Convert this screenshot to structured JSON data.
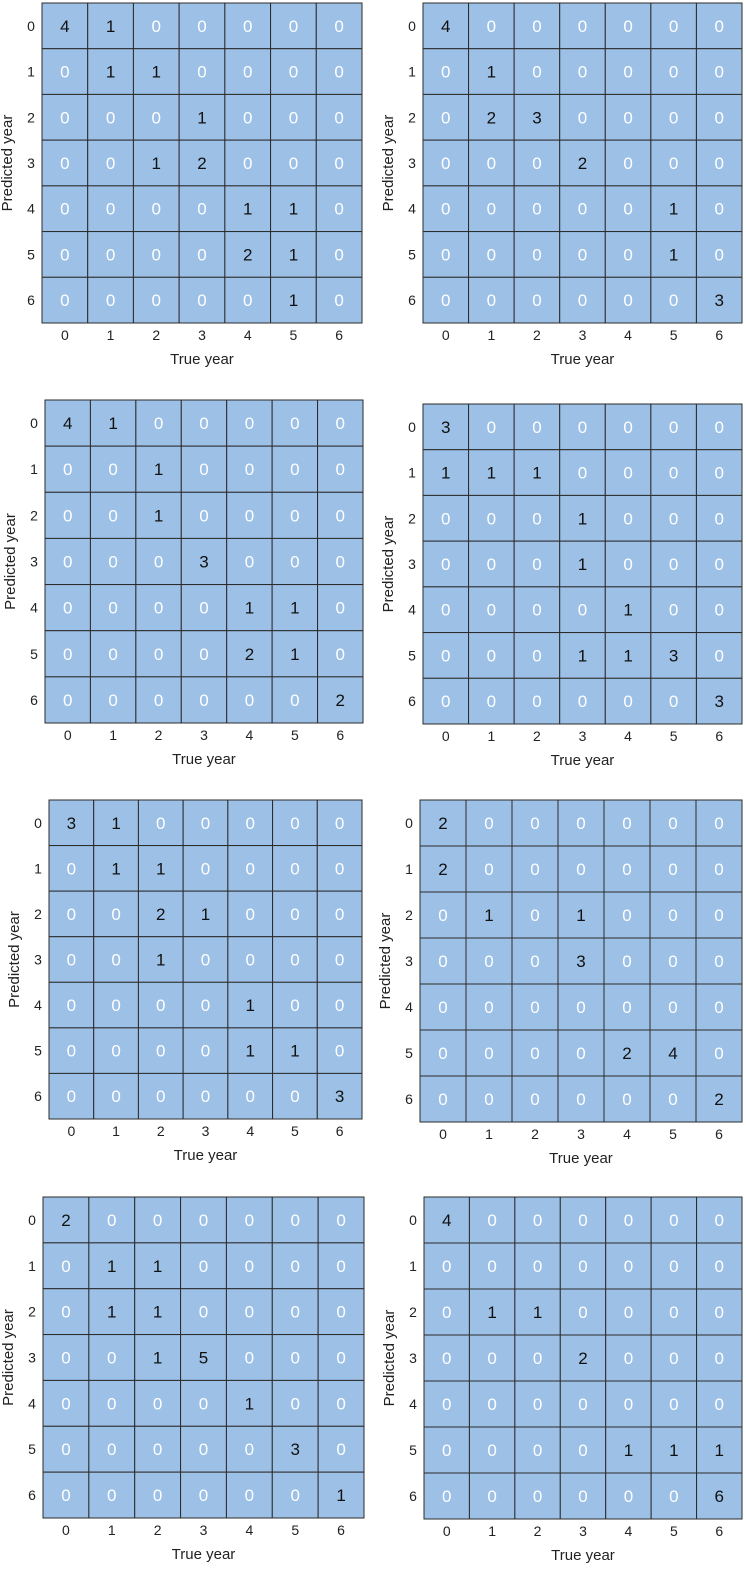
{
  "colors": {
    "cell_fill": "#9dc0e6",
    "grid_line": "#2b2b2b",
    "zero_text": "#ffffff",
    "nonzero_text": "#111111"
  },
  "chart_data": [
    {
      "type": "heatmap",
      "xlabel": "True year",
      "ylabel": "Predicted year",
      "x_categories": [
        "0",
        "1",
        "2",
        "3",
        "4",
        "5",
        "6"
      ],
      "y_categories": [
        "0",
        "1",
        "2",
        "3",
        "4",
        "5",
        "6"
      ],
      "values": [
        [
          4,
          1,
          0,
          0,
          0,
          0,
          0
        ],
        [
          0,
          1,
          1,
          0,
          0,
          0,
          0
        ],
        [
          0,
          0,
          0,
          1,
          0,
          0,
          0
        ],
        [
          0,
          0,
          1,
          2,
          0,
          0,
          0
        ],
        [
          0,
          0,
          0,
          0,
          1,
          1,
          0
        ],
        [
          0,
          0,
          0,
          0,
          2,
          1,
          0
        ],
        [
          0,
          0,
          0,
          0,
          0,
          1,
          0
        ]
      ]
    },
    {
      "type": "heatmap",
      "xlabel": "True year",
      "ylabel": "Predicted year",
      "x_categories": [
        "0",
        "1",
        "2",
        "3",
        "4",
        "5",
        "6"
      ],
      "y_categories": [
        "0",
        "1",
        "2",
        "3",
        "4",
        "5",
        "6"
      ],
      "values": [
        [
          4,
          0,
          0,
          0,
          0,
          0,
          0
        ],
        [
          0,
          1,
          0,
          0,
          0,
          0,
          0
        ],
        [
          0,
          2,
          3,
          0,
          0,
          0,
          0
        ],
        [
          0,
          0,
          0,
          2,
          0,
          0,
          0
        ],
        [
          0,
          0,
          0,
          0,
          0,
          1,
          0
        ],
        [
          0,
          0,
          0,
          0,
          0,
          1,
          0
        ],
        [
          0,
          0,
          0,
          0,
          0,
          0,
          3
        ]
      ]
    },
    {
      "type": "heatmap",
      "xlabel": "True year",
      "ylabel": "Predicted year",
      "x_categories": [
        "0",
        "1",
        "2",
        "3",
        "4",
        "5",
        "6"
      ],
      "y_categories": [
        "0",
        "1",
        "2",
        "3",
        "4",
        "5",
        "6"
      ],
      "values": [
        [
          4,
          1,
          0,
          0,
          0,
          0,
          0
        ],
        [
          0,
          0,
          1,
          0,
          0,
          0,
          0
        ],
        [
          0,
          0,
          1,
          0,
          0,
          0,
          0
        ],
        [
          0,
          0,
          0,
          3,
          0,
          0,
          0
        ],
        [
          0,
          0,
          0,
          0,
          1,
          1,
          0
        ],
        [
          0,
          0,
          0,
          0,
          2,
          1,
          0
        ],
        [
          0,
          0,
          0,
          0,
          0,
          0,
          2
        ]
      ]
    },
    {
      "type": "heatmap",
      "xlabel": "True year",
      "ylabel": "Predicted year",
      "x_categories": [
        "0",
        "1",
        "2",
        "3",
        "4",
        "5",
        "6"
      ],
      "y_categories": [
        "0",
        "1",
        "2",
        "3",
        "4",
        "5",
        "6"
      ],
      "values": [
        [
          3,
          0,
          0,
          0,
          0,
          0,
          0
        ],
        [
          1,
          1,
          1,
          0,
          0,
          0,
          0
        ],
        [
          0,
          0,
          0,
          1,
          0,
          0,
          0
        ],
        [
          0,
          0,
          0,
          1,
          0,
          0,
          0
        ],
        [
          0,
          0,
          0,
          0,
          1,
          0,
          0
        ],
        [
          0,
          0,
          0,
          1,
          1,
          3,
          0
        ],
        [
          0,
          0,
          0,
          0,
          0,
          0,
          3
        ]
      ]
    },
    {
      "type": "heatmap",
      "xlabel": "True year",
      "ylabel": "Predicted year",
      "x_categories": [
        "0",
        "1",
        "2",
        "3",
        "4",
        "5",
        "6"
      ],
      "y_categories": [
        "0",
        "1",
        "2",
        "3",
        "4",
        "5",
        "6"
      ],
      "values": [
        [
          3,
          1,
          0,
          0,
          0,
          0,
          0
        ],
        [
          0,
          1,
          1,
          0,
          0,
          0,
          0
        ],
        [
          0,
          0,
          2,
          1,
          0,
          0,
          0
        ],
        [
          0,
          0,
          1,
          0,
          0,
          0,
          0
        ],
        [
          0,
          0,
          0,
          0,
          1,
          0,
          0
        ],
        [
          0,
          0,
          0,
          0,
          1,
          1,
          0
        ],
        [
          0,
          0,
          0,
          0,
          0,
          0,
          3
        ]
      ]
    },
    {
      "type": "heatmap",
      "xlabel": "True year",
      "ylabel": "Predicted year",
      "x_categories": [
        "0",
        "1",
        "2",
        "3",
        "4",
        "5",
        "6"
      ],
      "y_categories": [
        "0",
        "1",
        "2",
        "3",
        "4",
        "5",
        "6"
      ],
      "values": [
        [
          2,
          0,
          0,
          0,
          0,
          0,
          0
        ],
        [
          2,
          0,
          0,
          0,
          0,
          0,
          0
        ],
        [
          0,
          1,
          0,
          1,
          0,
          0,
          0
        ],
        [
          0,
          0,
          0,
          3,
          0,
          0,
          0
        ],
        [
          0,
          0,
          0,
          0,
          0,
          0,
          0
        ],
        [
          0,
          0,
          0,
          0,
          2,
          4,
          0
        ],
        [
          0,
          0,
          0,
          0,
          0,
          0,
          2
        ]
      ]
    },
    {
      "type": "heatmap",
      "xlabel": "True year",
      "ylabel": "Predicted year",
      "x_categories": [
        "0",
        "1",
        "2",
        "3",
        "4",
        "5",
        "6"
      ],
      "y_categories": [
        "0",
        "1",
        "2",
        "3",
        "4",
        "5",
        "6"
      ],
      "values": [
        [
          2,
          0,
          0,
          0,
          0,
          0,
          0
        ],
        [
          0,
          1,
          1,
          0,
          0,
          0,
          0
        ],
        [
          0,
          1,
          1,
          0,
          0,
          0,
          0
        ],
        [
          0,
          0,
          1,
          5,
          0,
          0,
          0
        ],
        [
          0,
          0,
          0,
          0,
          1,
          0,
          0
        ],
        [
          0,
          0,
          0,
          0,
          0,
          3,
          0
        ],
        [
          0,
          0,
          0,
          0,
          0,
          0,
          1
        ]
      ]
    },
    {
      "type": "heatmap",
      "xlabel": "True year",
      "ylabel": "Predicted year",
      "x_categories": [
        "0",
        "1",
        "2",
        "3",
        "4",
        "5",
        "6"
      ],
      "y_categories": [
        "0",
        "1",
        "2",
        "3",
        "4",
        "5",
        "6"
      ],
      "values": [
        [
          4,
          0,
          0,
          0,
          0,
          0,
          0
        ],
        [
          0,
          0,
          0,
          0,
          0,
          0,
          0
        ],
        [
          0,
          1,
          1,
          0,
          0,
          0,
          0
        ],
        [
          0,
          0,
          0,
          2,
          0,
          0,
          0
        ],
        [
          0,
          0,
          0,
          0,
          0,
          0,
          0
        ],
        [
          0,
          0,
          0,
          0,
          1,
          1,
          1
        ],
        [
          0,
          0,
          0,
          0,
          0,
          0,
          6
        ]
      ]
    }
  ]
}
